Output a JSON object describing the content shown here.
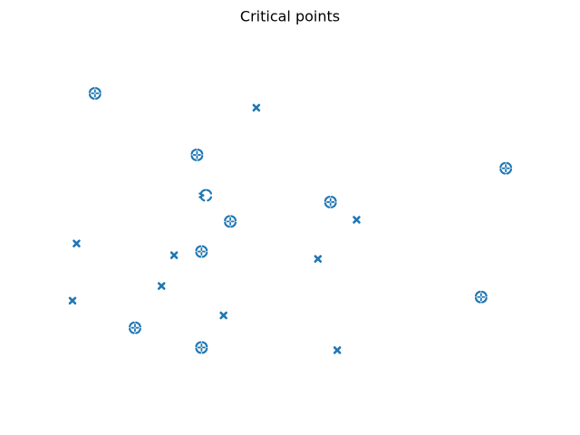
{
  "chart_data": {
    "type": "scatter",
    "title": "Critical points",
    "xlabel": "",
    "ylabel": "",
    "axes_visible": false,
    "grid": false,
    "legend": "none",
    "color": "#1f77b4",
    "xlim": [
      0,
      1
    ],
    "ylim": [
      0,
      1
    ],
    "points": [
      {
        "x": 0.05,
        "y": 0.878,
        "kind": "extremum"
      },
      {
        "x": 0.409,
        "y": 0.835,
        "kind": "saddle"
      },
      {
        "x": 0.277,
        "y": 0.694,
        "kind": "extremum"
      },
      {
        "x": 0.964,
        "y": 0.654,
        "kind": "extremum"
      },
      {
        "x": 0.297,
        "y": 0.573,
        "kind": "degenerate"
      },
      {
        "x": 0.574,
        "y": 0.553,
        "kind": "extremum"
      },
      {
        "x": 0.351,
        "y": 0.495,
        "kind": "extremum"
      },
      {
        "x": 0.632,
        "y": 0.5,
        "kind": "saddle"
      },
      {
        "x": 0.009,
        "y": 0.429,
        "kind": "saddle"
      },
      {
        "x": 0.226,
        "y": 0.394,
        "kind": "saddle"
      },
      {
        "x": 0.287,
        "y": 0.405,
        "kind": "extremum"
      },
      {
        "x": 0.546,
        "y": 0.383,
        "kind": "saddle"
      },
      {
        "x": 0.198,
        "y": 0.302,
        "kind": "saddle"
      },
      {
        "x": 0.0,
        "y": 0.258,
        "kind": "saddle"
      },
      {
        "x": 0.909,
        "y": 0.269,
        "kind": "extremum"
      },
      {
        "x": 0.336,
        "y": 0.214,
        "kind": "saddle"
      },
      {
        "x": 0.139,
        "y": 0.177,
        "kind": "extremum"
      },
      {
        "x": 0.287,
        "y": 0.118,
        "kind": "extremum"
      },
      {
        "x": 0.589,
        "y": 0.11,
        "kind": "saddle"
      }
    ]
  }
}
